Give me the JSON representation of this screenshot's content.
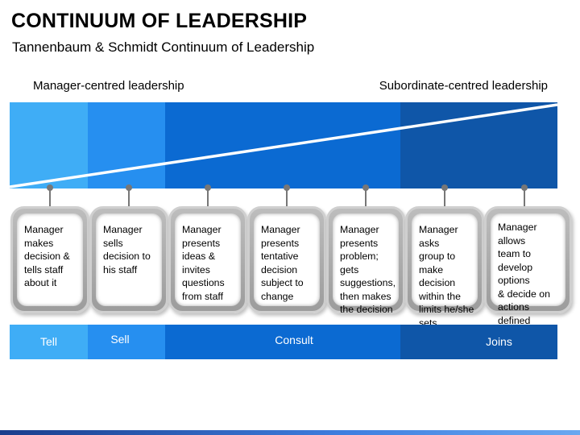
{
  "title": "CONTINUUM OF LEADERSHIP",
  "subtitle": "Tannenbaum & Schmidt Continuum of Leadership",
  "poles": {
    "left": "Manager-centred leadership",
    "right": "Subordinate-centred leadership"
  },
  "colors": {
    "light_blue": "#3fadf6",
    "mid_blue": "#268ff0",
    "blue": "#0b6ad2",
    "dark_blue": "#0f56a8"
  },
  "steps": [
    {
      "text": "Manager\nmakes\ndecision &\ntells staff\nabout it"
    },
    {
      "text": "Manager\nsells\ndecision to\nhis staff"
    },
    {
      "text": "Manager\npresents\nideas &\ninvites\nquestions\nfrom staff"
    },
    {
      "text": "Manager\npresents\ntentative\ndecision\nsubject to\nchange"
    },
    {
      "text": "Manager\npresents\nproblem; gets\nsuggestions,\nthen makes\nthe decision"
    },
    {
      "text": "Manager asks\ngroup to\nmake decision\nwithin  the\nlimits he/she\nsets"
    },
    {
      "text": "Manager allows\nteam to\ndevelop options\n& decide on\nactions defined\nby manager"
    }
  ],
  "styles": [
    {
      "label": "Tell"
    },
    {
      "label": "Sell"
    },
    {
      "label": "Consult"
    },
    {
      "label": "Joins"
    }
  ]
}
